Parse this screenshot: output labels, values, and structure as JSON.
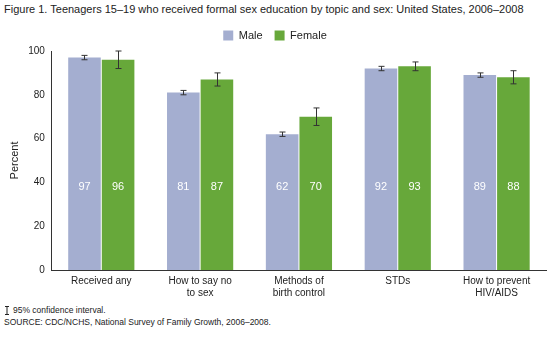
{
  "chart_data": {
    "type": "bar",
    "title": "Figure 1. Teenagers 15–19 who received formal sex education by topic and sex: United States, 2006–2008",
    "y_label": "Percent",
    "categories": [
      "Received any",
      [
        "How to say no",
        "to sex"
      ],
      [
        "Methods of",
        "birth control"
      ],
      "STDs",
      [
        "How to prevent",
        "HIV/AIDS"
      ]
    ],
    "series": [
      {
        "name": "Male",
        "color": "#a4aed0",
        "values": [
          97,
          81,
          62,
          92,
          89
        ],
        "error_low": [
          96,
          80,
          61,
          91,
          88
        ],
        "error_high": [
          98,
          82,
          63,
          93,
          90
        ]
      },
      {
        "name": "Female",
        "color": "#67a83a",
        "values": [
          96,
          87,
          70,
          93,
          88
        ],
        "error_low": [
          92,
          84,
          66,
          91,
          85
        ],
        "error_high": [
          100,
          90,
          74,
          95,
          91
        ]
      }
    ],
    "ylim": [
      0,
      100
    ],
    "yticks": [
      0,
      20,
      40,
      60,
      80,
      100
    ],
    "grid": false,
    "legend": "top",
    "data_labels": true,
    "notes": [
      "95% confidence interval.",
      "SOURCE: CDC/NCHS, National Survey of Family Growth, 2006–2008."
    ]
  }
}
